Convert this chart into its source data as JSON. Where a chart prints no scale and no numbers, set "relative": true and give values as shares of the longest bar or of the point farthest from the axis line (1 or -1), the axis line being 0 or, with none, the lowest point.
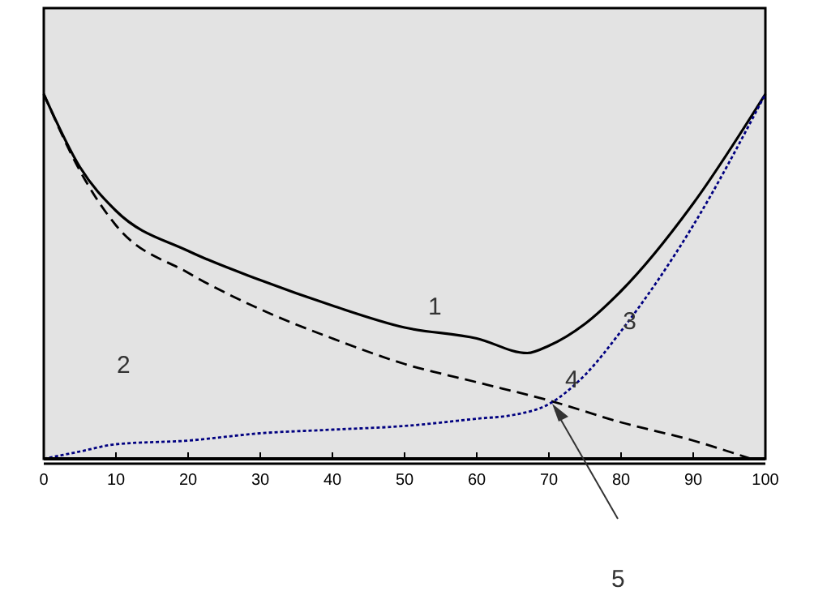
{
  "chart_data": {
    "type": "line",
    "relative": true,
    "xlim": [
      0,
      100
    ],
    "xticks": [
      0,
      10,
      20,
      30,
      40,
      50,
      60,
      70,
      80,
      90,
      100
    ],
    "grid": false,
    "series": [
      {
        "color": "#000000",
        "line_style": "solid",
        "x": [
          0,
          5,
          10,
          20,
          30,
          40,
          50,
          60,
          67,
          70,
          75,
          80,
          90,
          100
        ],
        "values": [
          1.0,
          0.8,
          0.68,
          0.57,
          0.49,
          0.42,
          0.36,
          0.33,
          0.29,
          0.31,
          0.37,
          0.46,
          0.7,
          1.0
        ]
      },
      {
        "color": "#000000",
        "line_style": "dashed",
        "x": [
          0,
          5,
          10,
          20,
          30,
          40,
          50,
          60,
          70,
          80,
          90,
          98
        ],
        "values": [
          1.0,
          0.79,
          0.64,
          0.51,
          0.41,
          0.33,
          0.26,
          0.21,
          0.16,
          0.1,
          0.05,
          0
        ]
      },
      {
        "color": "#000080",
        "line_style": "dotted",
        "x": [
          0,
          5,
          10,
          20,
          30,
          40,
          50,
          60,
          65,
          70,
          75,
          80,
          90,
          100
        ],
        "values": [
          0,
          0.02,
          0.04,
          0.05,
          0.07,
          0.08,
          0.09,
          0.11,
          0.12,
          0.15,
          0.23,
          0.35,
          0.64,
          1.0
        ]
      }
    ],
    "annotations": [
      {
        "text": "1",
        "x": 51,
        "y": 0.36
      },
      "2",
      {
        "text": "3",
        "x": 78,
        "y": 0.32
      },
      {
        "text": "4",
        "x": 70,
        "y": 0.16
      },
      "5"
    ]
  }
}
